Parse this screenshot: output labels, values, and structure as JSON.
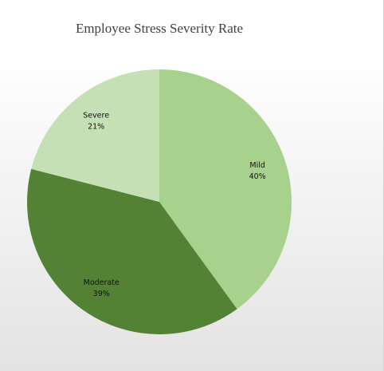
{
  "chart_data": {
    "type": "pie",
    "title": "Employee Stress Severity Rate",
    "slices": [
      {
        "label": "Mild",
        "value": 40,
        "value_label": "40%",
        "color": "#a9d18e"
      },
      {
        "label": "Moderate",
        "value": 39,
        "value_label": "39%",
        "color": "#548235"
      },
      {
        "label": "Severe",
        "value": 21,
        "value_label": "21%",
        "color": "#c5e0b4"
      }
    ],
    "start": "12 o'clock",
    "direction": "clockwise",
    "data_labels": "inside, category and percentage",
    "legend": "none"
  }
}
